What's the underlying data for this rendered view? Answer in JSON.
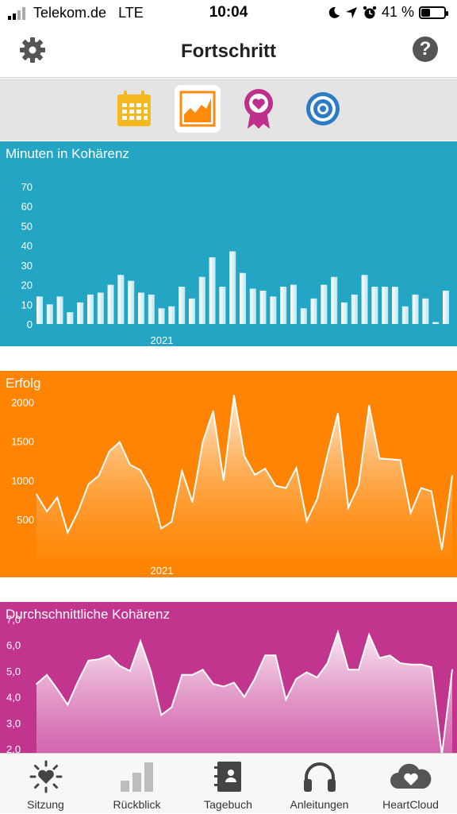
{
  "status": {
    "carrier": "Telekom.de",
    "network": "LTE",
    "time": "10:04",
    "battery": "41 %",
    "battery_level": 0.41
  },
  "nav": {
    "title": "Fortschritt",
    "settings_icon": "gear-icon",
    "help_icon": "question-mark-icon",
    "help_glyph": "?"
  },
  "tabs": [
    {
      "icon": "calendar-icon",
      "active": false
    },
    {
      "icon": "area-chart-icon",
      "active": true
    },
    {
      "icon": "award-heart-icon",
      "active": false
    },
    {
      "icon": "target-icon",
      "active": false
    }
  ],
  "colors": {
    "blue": "#25a5c4",
    "orange": "#ff8403",
    "magenta": "#c2358f",
    "calendar": "#f6b820",
    "chart_icon": "#ff8a0c",
    "award": "#bf2f8c",
    "target": "#2b7bc5"
  },
  "panels": [
    {
      "title": "Minuten in Kohärenz",
      "xtick": "2021"
    },
    {
      "title": "Erfolg",
      "xtick": "2021"
    },
    {
      "title": "Durchschnittliche Kohärenz"
    }
  ],
  "chart_data": [
    {
      "type": "bar",
      "title": "Minuten in Kohärenz",
      "ylim": [
        0,
        70
      ],
      "yticks": [
        "0",
        "10",
        "20",
        "30",
        "40",
        "50",
        "60",
        "70"
      ],
      "xtick_labels": [
        "2021"
      ],
      "values": [
        14,
        10,
        14,
        6,
        11,
        15,
        16,
        20,
        25,
        22,
        16,
        15,
        8,
        9,
        19,
        13,
        24,
        34,
        19,
        37,
        26,
        18,
        17,
        14,
        19,
        20,
        8,
        13,
        20,
        24,
        11,
        15,
        25,
        19,
        19,
        19,
        9,
        15,
        13,
        1,
        17
      ]
    },
    {
      "type": "area",
      "title": "Erfolg",
      "ylim": [
        0,
        2200
      ],
      "yticks": [
        "500",
        "1000",
        "1500",
        "2000"
      ],
      "xtick_labels": [
        "2021"
      ],
      "values": [
        820,
        600,
        780,
        330,
        600,
        950,
        1060,
        1370,
        1490,
        1200,
        1130,
        880,
        380,
        470,
        1120,
        720,
        1490,
        1890,
        1000,
        2090,
        1310,
        1070,
        1150,
        930,
        900,
        1160,
        480,
        760,
        1330,
        1860,
        650,
        940,
        1960,
        1280,
        1270,
        1260,
        580,
        900,
        860,
        110,
        1060
      ]
    },
    {
      "type": "area",
      "title": "Durchschnittliche Kohärenz",
      "ylim": [
        1.6,
        7.2
      ],
      "yticks": [
        "2,0",
        "3,0",
        "4,0",
        "5,0",
        "6,0",
        "7,0"
      ],
      "values": [
        4.5,
        4.85,
        4.3,
        3.7,
        4.6,
        5.4,
        5.45,
        5.6,
        5.2,
        5.0,
        6.15,
        5.0,
        3.3,
        3.6,
        4.85,
        4.85,
        5.05,
        4.5,
        4.4,
        4.55,
        4.0,
        4.7,
        5.6,
        5.6,
        3.9,
        4.7,
        4.95,
        4.75,
        5.3,
        6.5,
        5.05,
        5.05,
        6.4,
        5.5,
        5.6,
        5.3,
        5.25,
        5.25,
        5.15,
        1.75,
        5.05
      ]
    }
  ],
  "tabbar": [
    {
      "label": "Sitzung",
      "icon": "heart-sun-icon"
    },
    {
      "label": "Rückblick",
      "icon": "bar-stats-icon"
    },
    {
      "label": "Tagebuch",
      "icon": "journal-icon"
    },
    {
      "label": "Anleitungen",
      "icon": "headphones-icon"
    },
    {
      "label": "HeartCloud",
      "icon": "cloud-heart-icon"
    }
  ]
}
